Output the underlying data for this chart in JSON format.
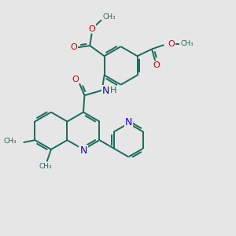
{
  "bg_color": "#e6e6e6",
  "bond_color": "#1a6b5a",
  "bond_width": 1.4,
  "N_color": "#1a00cc",
  "O_color": "#cc0000",
  "text_color": "#1a6b5a",
  "font_size": 7.0,
  "figsize": [
    3.0,
    3.0
  ],
  "dpi": 100,
  "xlim": [
    0,
    10
  ],
  "ylim": [
    0,
    10
  ]
}
